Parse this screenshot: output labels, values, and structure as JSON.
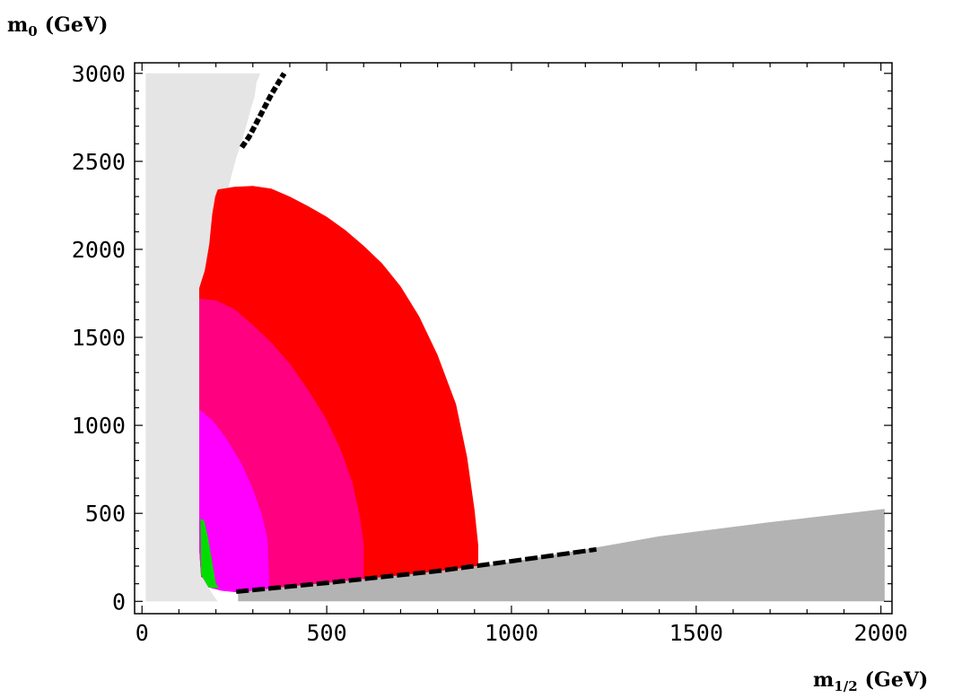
{
  "chart_data": {
    "type": "area",
    "title": "",
    "ylabel": {
      "main": "m",
      "sub": "0",
      "unit": "(GeV)"
    },
    "xlabel": {
      "main": "m",
      "sub": "1/2",
      "unit": "(GeV)"
    },
    "xlim": [
      -20,
      2030
    ],
    "ylim": [
      -70,
      3060
    ],
    "x_ticks": [
      0,
      500,
      1000,
      1500,
      2000
    ],
    "y_ticks": [
      0,
      500,
      1000,
      1500,
      2000,
      2500,
      3000
    ],
    "grid": false,
    "legend": "none",
    "regions": [
      {
        "key": "excluded_light",
        "color": "#e5e5e5",
        "points": [
          [
            10,
            3000
          ],
          [
            320,
            3000
          ],
          [
            310,
            2950
          ],
          [
            305,
            2870
          ],
          [
            295,
            2800
          ],
          [
            282,
            2700
          ],
          [
            268,
            2600
          ],
          [
            255,
            2520
          ],
          [
            240,
            2400
          ],
          [
            228,
            2300
          ],
          [
            220,
            2200
          ],
          [
            210,
            2050
          ],
          [
            200,
            1900
          ],
          [
            190,
            1750
          ],
          [
            175,
            1500
          ],
          [
            170,
            1300
          ],
          [
            165,
            1100
          ],
          [
            163,
            900
          ],
          [
            160,
            700
          ],
          [
            158,
            500
          ],
          [
            160,
            300
          ],
          [
            170,
            150
          ],
          [
            185,
            60
          ],
          [
            205,
            0
          ],
          [
            10,
            0
          ]
        ]
      },
      {
        "key": "excluded_stau",
        "color": "#b3b3b3",
        "points": [
          [
            260,
            0
          ],
          [
            2010,
            0
          ],
          [
            2010,
            525
          ],
          [
            1700,
            450
          ],
          [
            1400,
            370
          ],
          [
            1200,
            295
          ],
          [
            1000,
            225
          ],
          [
            900,
            195
          ],
          [
            800,
            170
          ],
          [
            700,
            148
          ],
          [
            600,
            127
          ],
          [
            500,
            105
          ],
          [
            400,
            85
          ],
          [
            300,
            62
          ],
          [
            260,
            50
          ]
        ]
      },
      {
        "key": "red_region",
        "color": "#ff0000",
        "points": [
          [
            155,
            1780
          ],
          [
            170,
            1880
          ],
          [
            182,
            2030
          ],
          [
            190,
            2200
          ],
          [
            198,
            2300
          ],
          [
            205,
            2340
          ],
          [
            250,
            2355
          ],
          [
            300,
            2360
          ],
          [
            350,
            2345
          ],
          [
            400,
            2300
          ],
          [
            450,
            2245
          ],
          [
            500,
            2185
          ],
          [
            550,
            2110
          ],
          [
            600,
            2020
          ],
          [
            650,
            1920
          ],
          [
            700,
            1790
          ],
          [
            750,
            1620
          ],
          [
            800,
            1400
          ],
          [
            850,
            1120
          ],
          [
            880,
            820
          ],
          [
            900,
            520
          ],
          [
            910,
            320
          ],
          [
            910,
            200
          ],
          [
            800,
            170
          ],
          [
            700,
            148
          ],
          [
            600,
            127
          ],
          [
            500,
            105
          ],
          [
            400,
            85
          ],
          [
            300,
            62
          ],
          [
            265,
            50
          ],
          [
            200,
            80
          ],
          [
            160,
            140
          ],
          [
            155,
            300
          ]
        ]
      },
      {
        "key": "pink_region",
        "color": "#ff0080",
        "points": [
          [
            155,
            1720
          ],
          [
            200,
            1710
          ],
          [
            250,
            1660
          ],
          [
            300,
            1570
          ],
          [
            350,
            1470
          ],
          [
            400,
            1350
          ],
          [
            450,
            1200
          ],
          [
            500,
            1030
          ],
          [
            540,
            850
          ],
          [
            570,
            670
          ],
          [
            590,
            480
          ],
          [
            600,
            320
          ],
          [
            600,
            127
          ],
          [
            500,
            105
          ],
          [
            400,
            85
          ],
          [
            300,
            62
          ],
          [
            265,
            50
          ],
          [
            200,
            80
          ],
          [
            160,
            140
          ],
          [
            155,
            300
          ]
        ]
      },
      {
        "key": "magenta_region",
        "color": "#ff00ff",
        "points": [
          [
            155,
            1090
          ],
          [
            190,
            1030
          ],
          [
            230,
            920
          ],
          [
            270,
            780
          ],
          [
            300,
            640
          ],
          [
            325,
            490
          ],
          [
            340,
            350
          ],
          [
            345,
            75
          ],
          [
            300,
            62
          ],
          [
            265,
            50
          ],
          [
            215,
            60
          ],
          [
            180,
            80
          ],
          [
            160,
            150
          ],
          [
            155,
            300
          ]
        ]
      },
      {
        "key": "green_region",
        "color": "#00dd00",
        "points": [
          [
            158,
            470
          ],
          [
            168,
            460
          ],
          [
            178,
            370
          ],
          [
            188,
            250
          ],
          [
            200,
            100
          ],
          [
            210,
            75
          ],
          [
            180,
            80
          ],
          [
            160,
            150
          ]
        ]
      }
    ],
    "black_segments": [
      [
        [
          270,
          2580
        ],
        [
          290,
          2640
        ],
        [
          310,
          2720
        ],
        [
          330,
          2800
        ],
        [
          350,
          2880
        ],
        [
          370,
          2950
        ],
        [
          385,
          3000
        ]
      ],
      [
        [
          255,
          55
        ],
        [
          500,
          105
        ],
        [
          800,
          172
        ],
        [
          1000,
          228
        ],
        [
          1230,
          295
        ]
      ]
    ]
  }
}
